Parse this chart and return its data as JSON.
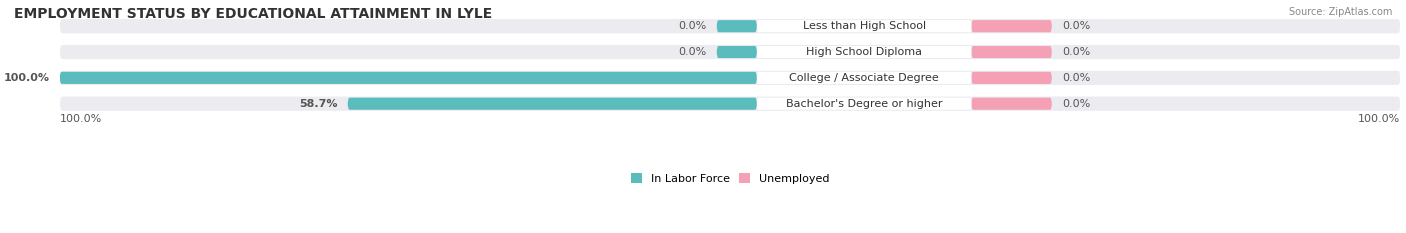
{
  "title": "EMPLOYMENT STATUS BY EDUCATIONAL ATTAINMENT IN LYLE",
  "source": "Source: ZipAtlas.com",
  "categories": [
    "Less than High School",
    "High School Diploma",
    "College / Associate Degree",
    "Bachelor's Degree or higher"
  ],
  "labor_force_values": [
    0.0,
    0.0,
    100.0,
    58.7
  ],
  "unemployed_values": [
    0.0,
    0.0,
    0.0,
    0.0
  ],
  "labor_force_color": "#5bbcbe",
  "unemployed_color": "#f4a0b5",
  "bar_bg_color": "#ebebf0",
  "label_bg_color": "#ffffff",
  "legend_labor": "In Labor Force",
  "legend_unemployed": "Unemployed",
  "left_axis_label": "100.0%",
  "right_axis_label": "100.0%",
  "title_fontsize": 10,
  "label_fontsize": 8,
  "value_fontsize": 8,
  "tick_fontsize": 8,
  "figsize": [
    14.06,
    2.33
  ],
  "dpi": 100
}
